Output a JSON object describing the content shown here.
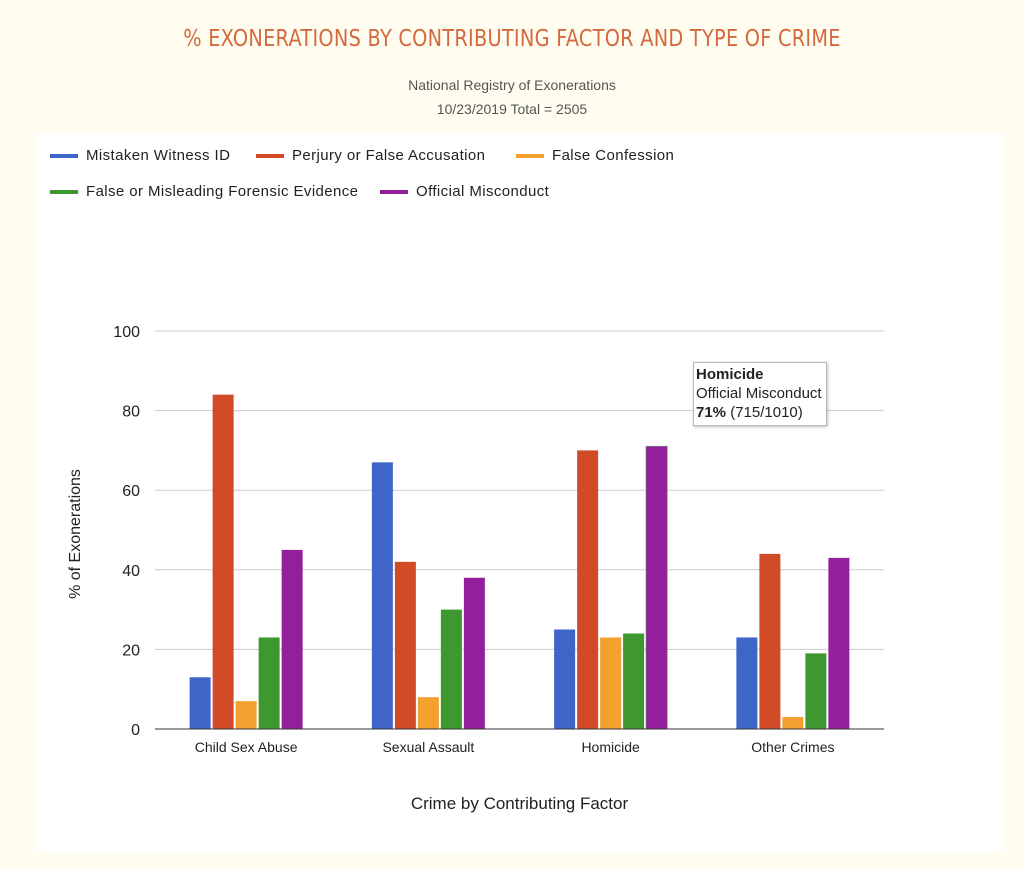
{
  "header": {
    "title": "% EXONERATIONS BY CONTRIBUTING FACTOR AND TYPE OF CRIME",
    "subtitle_line1": "National Registry of Exonerations",
    "subtitle_line2": "10/23/2019 Total = 2505"
  },
  "tooltip": {
    "category": "Homicide",
    "series": "Official Misconduct",
    "percent": "71%",
    "detail": " (715/1010)"
  },
  "chart_data": {
    "type": "bar",
    "categories": [
      "Child Sex Abuse",
      "Sexual Assault",
      "Homicide",
      "Other Crimes"
    ],
    "series": [
      {
        "name": "Mistaken Witness ID",
        "color": "#3e66c8",
        "values": [
          13,
          67,
          25,
          23
        ]
      },
      {
        "name": "Perjury or False Accusation",
        "color": "#d24b27",
        "values": [
          84,
          42,
          70,
          44
        ]
      },
      {
        "name": "False Confession",
        "color": "#f4a02e",
        "values": [
          7,
          8,
          23,
          3
        ]
      },
      {
        "name": "False or Misleading Forensic Evidence",
        "color": "#3f982f",
        "values": [
          23,
          30,
          24,
          19
        ]
      },
      {
        "name": "Official Misconduct",
        "color": "#931f9c",
        "values": [
          45,
          38,
          71,
          43
        ]
      }
    ],
    "xlabel": "Crime by Contributing Factor",
    "ylabel": "% of Exonerations",
    "ylim": [
      0,
      100
    ],
    "yticks": [
      0,
      20,
      40,
      60,
      80,
      100
    ],
    "grid": true,
    "legend_position": "top-left",
    "highlighted": {
      "category": "Homicide",
      "series": "Official Misconduct"
    }
  }
}
